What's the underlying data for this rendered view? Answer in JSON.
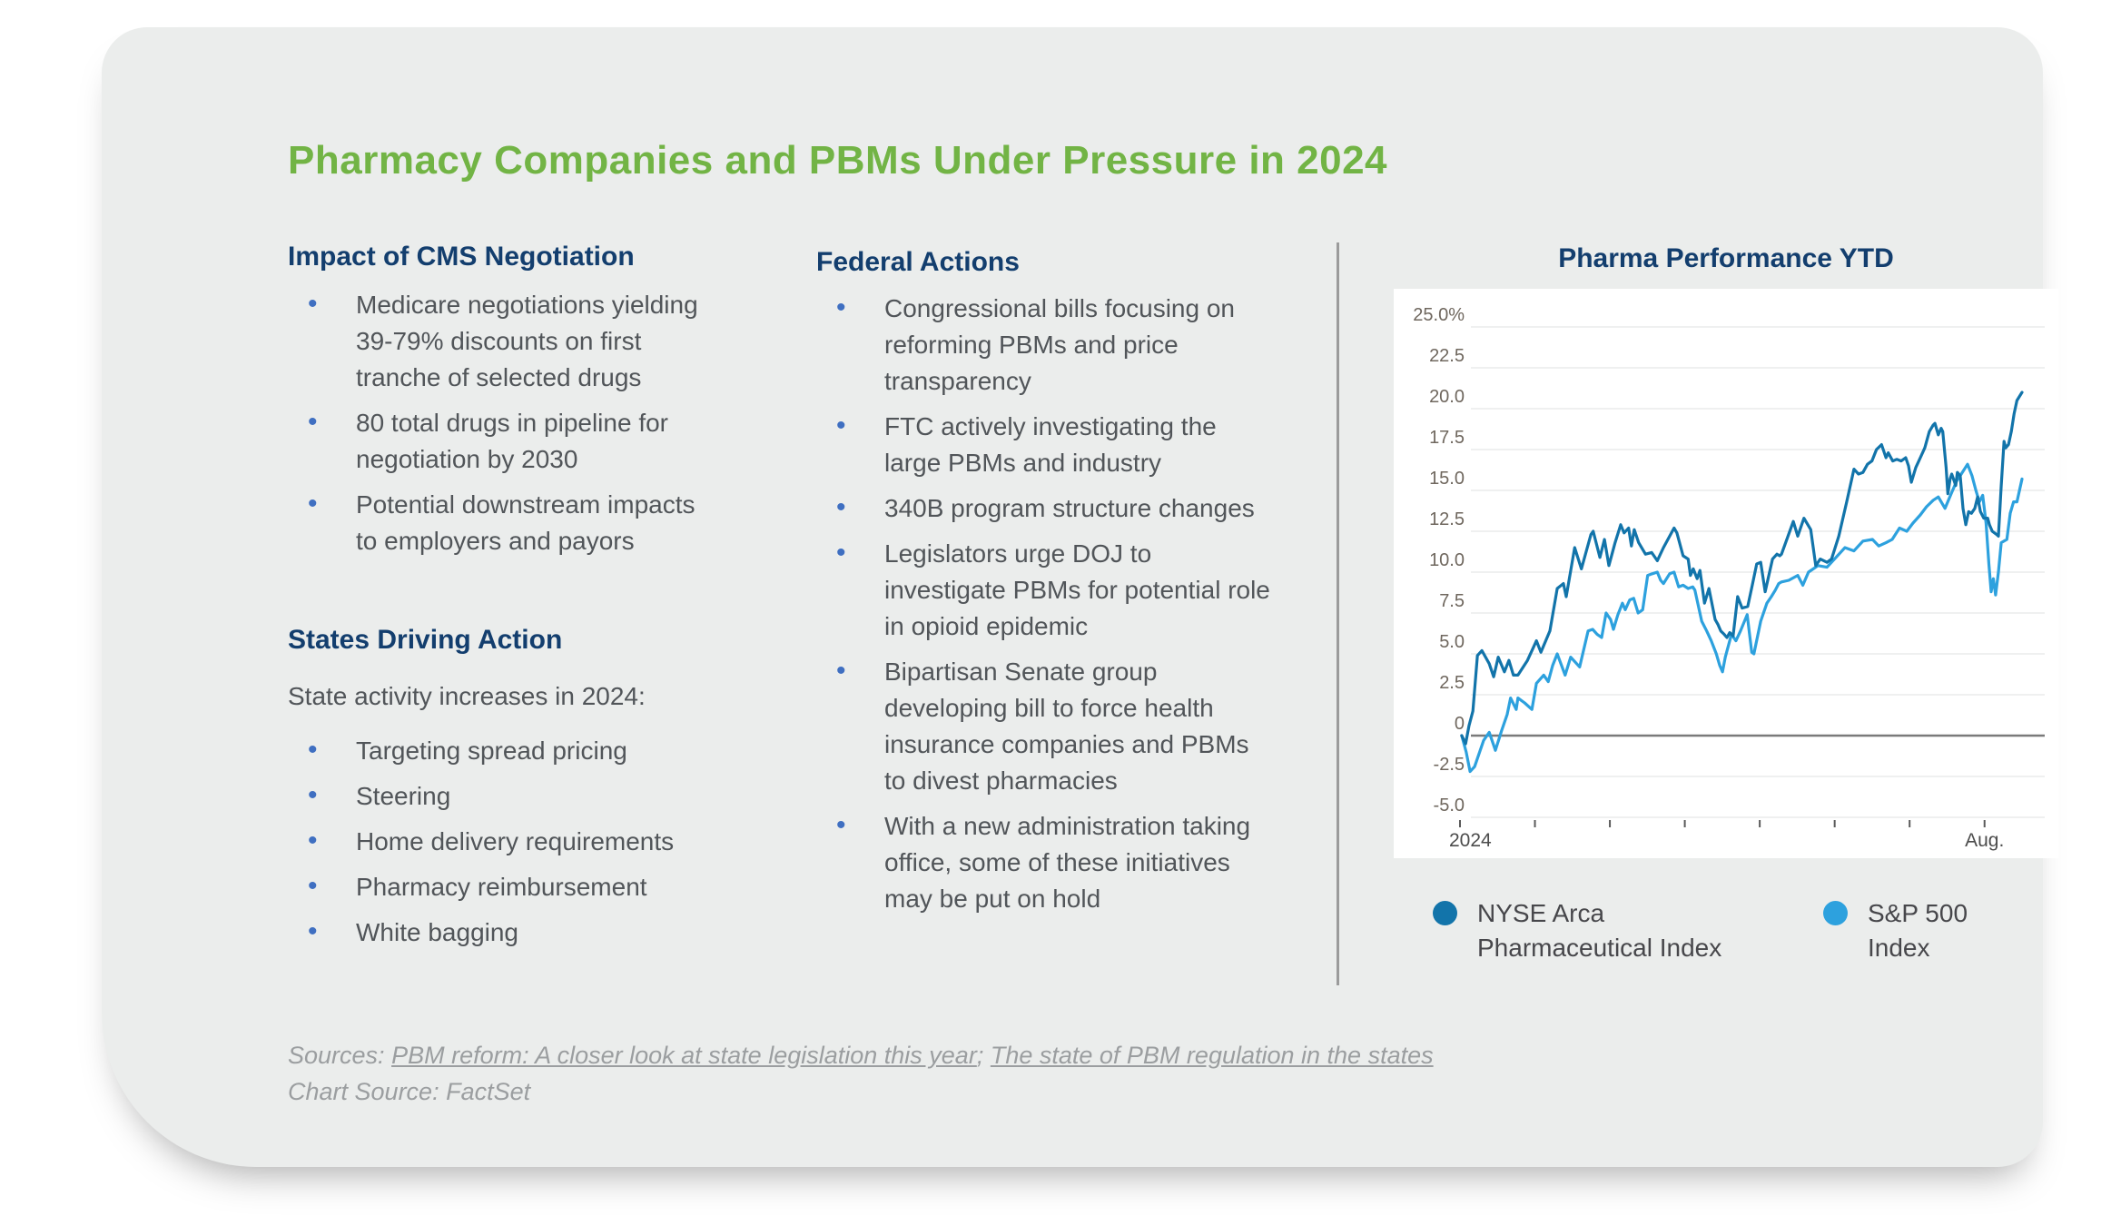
{
  "title": "Pharmacy Companies and PBMs Under Pressure in 2024",
  "columns": {
    "cms": {
      "heading": "Impact of CMS Negotiation",
      "bullets": [
        "Medicare negotiations yielding 39-79% discounts on first tranche of selected drugs",
        "80 total drugs in pipeline for negotiation by 2030",
        "Potential downstream impacts to employers and payors"
      ]
    },
    "states": {
      "heading": "States Driving Action",
      "intro": "State activity increases in 2024:",
      "bullets": [
        "Targeting spread pricing",
        "Steering",
        "Home delivery requirements",
        "Pharmacy reimbursement",
        "White bagging"
      ]
    },
    "federal": {
      "heading": "Federal Actions",
      "bullets": [
        "Congressional bills focusing on reforming PBMs and price transparency",
        "FTC actively investigating the large PBMs and industry",
        "340B program structure changes",
        "Legislators urge DOJ to investigate PBMs for potential role in opioid epidemic",
        "Bipartisan Senate group developing bill to force health insurance companies and PBMs to divest pharmacies",
        "With a new administration taking office, some of these initiatives may be put on hold"
      ]
    }
  },
  "chart": {
    "title": "Pharma Performance YTD",
    "legend": [
      {
        "label": "NYSE Arca Pharmaceutical Index",
        "color": "#1274aa"
      },
      {
        "label": "S&P 500 Index",
        "color": "#2da1de"
      }
    ]
  },
  "chart_data": {
    "type": "line",
    "title": "Pharma Performance YTD",
    "xlabel": "",
    "ylabel": "",
    "ylim": [
      -5.0,
      25.0
    ],
    "grid": true,
    "zero_line": true,
    "legend_position": "bottom",
    "ytick_labels": [
      "25.0%",
      "22.5",
      "20.0",
      "17.5",
      "15.0",
      "12.5",
      "10.0",
      "7.5",
      "5.0",
      "2.5",
      "0",
      "-2.5",
      "-5.0"
    ],
    "xtick_labels": [
      "2024",
      "",
      "",
      "",
      "",
      "",
      "",
      "Aug."
    ],
    "x_span_months": 7.5,
    "series": [
      {
        "name": "NYSE Arca Pharmaceutical Index",
        "color": "#1274aa",
        "points": [
          [
            0.003,
            0.0
          ],
          [
            0.01,
            -0.5
          ],
          [
            0.016,
            0.6
          ],
          [
            0.023,
            1.5
          ],
          [
            0.031,
            4.9
          ],
          [
            0.039,
            5.2
          ],
          [
            0.052,
            4.4
          ],
          [
            0.06,
            3.6
          ],
          [
            0.068,
            4.8
          ],
          [
            0.079,
            3.9
          ],
          [
            0.087,
            4.6
          ],
          [
            0.095,
            3.7
          ],
          [
            0.103,
            3.7
          ],
          [
            0.12,
            4.6
          ],
          [
            0.136,
            5.8
          ],
          [
            0.144,
            5.1
          ],
          [
            0.16,
            6.4
          ],
          [
            0.173,
            9.0
          ],
          [
            0.184,
            9.3
          ],
          [
            0.189,
            8.5
          ],
          [
            0.204,
            11.5
          ],
          [
            0.216,
            10.2
          ],
          [
            0.233,
            12.3
          ],
          [
            0.237,
            12.5
          ],
          [
            0.249,
            10.9
          ],
          [
            0.257,
            12.0
          ],
          [
            0.265,
            10.4
          ],
          [
            0.276,
            11.8
          ],
          [
            0.286,
            12.9
          ],
          [
            0.292,
            12.4
          ],
          [
            0.3,
            12.7
          ],
          [
            0.305,
            11.6
          ],
          [
            0.31,
            12.6
          ],
          [
            0.318,
            11.8
          ],
          [
            0.33,
            11.1
          ],
          [
            0.341,
            11.2
          ],
          [
            0.351,
            10.7
          ],
          [
            0.362,
            11.5
          ],
          [
            0.381,
            12.7
          ],
          [
            0.386,
            12.4
          ],
          [
            0.397,
            11.0
          ],
          [
            0.406,
            10.8
          ],
          [
            0.41,
            9.8
          ],
          [
            0.415,
            10.2
          ],
          [
            0.422,
            9.6
          ],
          [
            0.427,
            10.1
          ],
          [
            0.435,
            8.1
          ],
          [
            0.443,
            9.0
          ],
          [
            0.454,
            7.1
          ],
          [
            0.459,
            6.8
          ],
          [
            0.464,
            6.4
          ],
          [
            0.47,
            6.2
          ],
          [
            0.475,
            6.0
          ],
          [
            0.48,
            6.3
          ],
          [
            0.486,
            6.1
          ],
          [
            0.494,
            8.5
          ],
          [
            0.502,
            7.8
          ],
          [
            0.512,
            7.9
          ],
          [
            0.52,
            9.2
          ],
          [
            0.528,
            10.5
          ],
          [
            0.535,
            10.6
          ],
          [
            0.543,
            8.8
          ],
          [
            0.556,
            10.8
          ],
          [
            0.564,
            11.1
          ],
          [
            0.569,
            11.0
          ],
          [
            0.572,
            11.1
          ],
          [
            0.593,
            13.1
          ],
          [
            0.601,
            12.2
          ],
          [
            0.612,
            13.3
          ],
          [
            0.624,
            12.6
          ],
          [
            0.633,
            10.4
          ],
          [
            0.641,
            10.8
          ],
          [
            0.653,
            10.6
          ],
          [
            0.661,
            10.8
          ],
          [
            0.674,
            12.2
          ],
          [
            0.688,
            14.3
          ],
          [
            0.701,
            16.3
          ],
          [
            0.709,
            16.0
          ],
          [
            0.717,
            16.1
          ],
          [
            0.725,
            16.6
          ],
          [
            0.733,
            16.8
          ],
          [
            0.741,
            17.5
          ],
          [
            0.75,
            17.8
          ],
          [
            0.758,
            17.0
          ],
          [
            0.762,
            17.3
          ],
          [
            0.77,
            16.8
          ],
          [
            0.777,
            16.9
          ],
          [
            0.785,
            16.8
          ],
          [
            0.793,
            17.0
          ],
          [
            0.798,
            16.5
          ],
          [
            0.803,
            15.5
          ],
          [
            0.811,
            16.4
          ],
          [
            0.819,
            17.0
          ],
          [
            0.827,
            17.6
          ],
          [
            0.835,
            18.6
          ],
          [
            0.842,
            19.0
          ],
          [
            0.845,
            19.1
          ],
          [
            0.851,
            18.4
          ],
          [
            0.856,
            18.8
          ],
          [
            0.859,
            18.6
          ],
          [
            0.865,
            16.4
          ],
          [
            0.868,
            14.8
          ],
          [
            0.872,
            15.7
          ],
          [
            0.875,
            16.0
          ],
          [
            0.882,
            15.3
          ],
          [
            0.885,
            16.1
          ],
          [
            0.89,
            15.9
          ],
          [
            0.895,
            13.9
          ],
          [
            0.9,
            12.9
          ],
          [
            0.905,
            13.7
          ],
          [
            0.91,
            13.6
          ],
          [
            0.916,
            13.9
          ],
          [
            0.921,
            14.6
          ],
          [
            0.926,
            13.7
          ],
          [
            0.932,
            13.3
          ],
          [
            0.939,
            13.3
          ],
          [
            0.942,
            12.9
          ],
          [
            0.947,
            12.5
          ],
          [
            0.951,
            12.4
          ],
          [
            0.955,
            12.3
          ],
          [
            0.958,
            12.2
          ],
          [
            0.963,
            15.3
          ],
          [
            0.968,
            18.0
          ],
          [
            0.971,
            17.6
          ],
          [
            0.976,
            17.8
          ],
          [
            0.981,
            18.6
          ],
          [
            0.986,
            19.7
          ],
          [
            0.991,
            20.5
          ],
          [
            1.0,
            21.0
          ]
        ]
      },
      {
        "name": "S&P 500 Index",
        "color": "#2da1de",
        "points": [
          [
            0.003,
            0.0
          ],
          [
            0.011,
            -1.0
          ],
          [
            0.018,
            -2.2
          ],
          [
            0.026,
            -1.9
          ],
          [
            0.042,
            -0.3
          ],
          [
            0.052,
            0.2
          ],
          [
            0.063,
            -0.9
          ],
          [
            0.074,
            0.3
          ],
          [
            0.084,
            1.3
          ],
          [
            0.09,
            2.3
          ],
          [
            0.1,
            1.6
          ],
          [
            0.103,
            2.3
          ],
          [
            0.115,
            2.0
          ],
          [
            0.128,
            1.6
          ],
          [
            0.136,
            3.2
          ],
          [
            0.149,
            3.7
          ],
          [
            0.157,
            3.3
          ],
          [
            0.165,
            4.3
          ],
          [
            0.173,
            5.0
          ],
          [
            0.187,
            3.7
          ],
          [
            0.197,
            4.8
          ],
          [
            0.213,
            4.2
          ],
          [
            0.228,
            6.4
          ],
          [
            0.236,
            6.5
          ],
          [
            0.244,
            6.2
          ],
          [
            0.252,
            6.0
          ],
          [
            0.26,
            7.5
          ],
          [
            0.268,
            7.1
          ],
          [
            0.273,
            6.5
          ],
          [
            0.281,
            7.4
          ],
          [
            0.289,
            8.1
          ],
          [
            0.294,
            7.7
          ],
          [
            0.302,
            8.3
          ],
          [
            0.309,
            8.4
          ],
          [
            0.317,
            7.5
          ],
          [
            0.325,
            7.7
          ],
          [
            0.334,
            9.8
          ],
          [
            0.342,
            9.9
          ],
          [
            0.351,
            10.0
          ],
          [
            0.357,
            9.5
          ],
          [
            0.362,
            9.3
          ],
          [
            0.373,
            9.9
          ],
          [
            0.381,
            10.0
          ],
          [
            0.389,
            9.1
          ],
          [
            0.397,
            9.2
          ],
          [
            0.406,
            9.0
          ],
          [
            0.414,
            9.1
          ],
          [
            0.418,
            8.9
          ],
          [
            0.43,
            7.0
          ],
          [
            0.439,
            6.4
          ],
          [
            0.447,
            5.8
          ],
          [
            0.456,
            5.0
          ],
          [
            0.462,
            4.3
          ],
          [
            0.467,
            3.9
          ],
          [
            0.472,
            4.8
          ],
          [
            0.483,
            6.2
          ],
          [
            0.491,
            5.8
          ],
          [
            0.499,
            6.4
          ],
          [
            0.511,
            7.4
          ],
          [
            0.519,
            5.1
          ],
          [
            0.523,
            5.0
          ],
          [
            0.535,
            7.0
          ],
          [
            0.546,
            8.1
          ],
          [
            0.554,
            8.5
          ],
          [
            0.561,
            8.9
          ],
          [
            0.567,
            9.3
          ],
          [
            0.572,
            9.4
          ],
          [
            0.585,
            9.5
          ],
          [
            0.601,
            9.8
          ],
          [
            0.61,
            9.2
          ],
          [
            0.62,
            10.0
          ],
          [
            0.637,
            10.4
          ],
          [
            0.653,
            10.3
          ],
          [
            0.669,
            10.9
          ],
          [
            0.685,
            11.5
          ],
          [
            0.701,
            11.3
          ],
          [
            0.717,
            11.9
          ],
          [
            0.734,
            12.0
          ],
          [
            0.745,
            11.6
          ],
          [
            0.758,
            11.8
          ],
          [
            0.769,
            12.0
          ],
          [
            0.782,
            12.7
          ],
          [
            0.795,
            12.5
          ],
          [
            0.806,
            13.0
          ],
          [
            0.819,
            13.5
          ],
          [
            0.83,
            14.0
          ],
          [
            0.842,
            14.4
          ],
          [
            0.851,
            14.6
          ],
          [
            0.863,
            13.9
          ],
          [
            0.874,
            14.8
          ],
          [
            0.884,
            15.6
          ],
          [
            0.892,
            16.0
          ],
          [
            0.903,
            16.6
          ],
          [
            0.911,
            15.9
          ],
          [
            0.918,
            15.0
          ],
          [
            0.924,
            14.3
          ],
          [
            0.93,
            14.7
          ],
          [
            0.936,
            13.0
          ],
          [
            0.941,
            10.5
          ],
          [
            0.945,
            8.8
          ],
          [
            0.949,
            9.6
          ],
          [
            0.953,
            8.6
          ],
          [
            0.958,
            10.0
          ],
          [
            0.963,
            11.8
          ],
          [
            0.968,
            11.9
          ],
          [
            0.973,
            12.0
          ],
          [
            0.979,
            13.6
          ],
          [
            0.985,
            14.3
          ],
          [
            0.991,
            14.3
          ],
          [
            1.0,
            15.7
          ]
        ]
      }
    ]
  },
  "sources": {
    "prefix": "Sources: ",
    "link1": "PBM reform: A closer look at state legislation this year",
    "separator": "; ",
    "link2": "The state of PBM regulation in the states",
    "chart_source": "Chart Source: FactSet"
  }
}
